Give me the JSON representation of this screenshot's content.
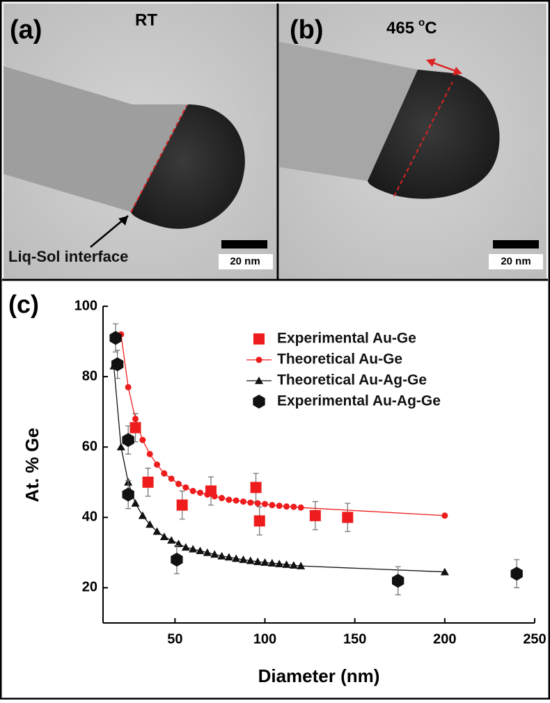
{
  "panels": [
    {
      "label": "(a)",
      "title": "RT",
      "annotation": "Liq-Sol interface",
      "scale_bar": "20 nm"
    },
    {
      "label": "(b)",
      "title": {
        "number": "465",
        "sup": "o",
        "unit": "C"
      },
      "scale_bar": "20 nm"
    }
  ],
  "chart_data": {
    "type": "scatter",
    "label": "(c)",
    "x_label": "Diameter (nm)",
    "y_label": "At. % Ge",
    "xlim": [
      10,
      250
    ],
    "ylim": [
      10,
      100
    ],
    "xticks": [
      50,
      100,
      150,
      200,
      250
    ],
    "yticks": [
      20,
      40,
      60,
      80,
      100
    ],
    "legend": "upper right",
    "series": [
      {
        "name": "Experimental Au-Ge",
        "color": "#ee1c1c",
        "marker": "square",
        "line": false,
        "x": [
          28,
          35,
          54,
          70,
          95,
          97,
          128,
          146
        ],
        "values": [
          65.5,
          50,
          43.5,
          47.5,
          48.5,
          39,
          40.5,
          40
        ],
        "errors": [
          4,
          4,
          4,
          4,
          4,
          4,
          4,
          4
        ]
      },
      {
        "name": "Theoretical Au-Ge",
        "color": "#ee1c1c",
        "marker": "circle",
        "line": true,
        "x": [
          20,
          24,
          28,
          32,
          36,
          40,
          44,
          48,
          52,
          56,
          60,
          64,
          68,
          72,
          76,
          80,
          84,
          88,
          92,
          96,
          100,
          104,
          108,
          112,
          116,
          120,
          200
        ],
        "values": [
          92,
          77,
          68,
          62,
          58,
          55,
          52.5,
          51,
          49.5,
          48.5,
          47.5,
          47,
          46.5,
          46,
          45.5,
          45,
          44.8,
          44.5,
          44.2,
          44,
          43.8,
          43.5,
          43.3,
          43.1,
          43,
          42.8,
          40.5
        ]
      },
      {
        "name": "Theoretical Au-Ag-Ge",
        "color": "#111111",
        "marker": "triangle",
        "line": true,
        "x": [
          16,
          20,
          24,
          28,
          32,
          36,
          40,
          44,
          48,
          52,
          56,
          60,
          64,
          68,
          72,
          76,
          80,
          84,
          88,
          92,
          96,
          100,
          104,
          108,
          112,
          116,
          120,
          200
        ],
        "values": [
          83,
          60,
          50,
          44,
          40.5,
          38,
          36,
          34.5,
          33.5,
          32.5,
          31.5,
          31,
          30.5,
          30,
          29.5,
          29,
          28.7,
          28.3,
          28,
          27.7,
          27.4,
          27.2,
          27,
          26.8,
          26.6,
          26.4,
          26.2,
          24.5
        ]
      },
      {
        "name": "Experimental Au-Ag-Ge",
        "color": "#111111",
        "marker": "hexagon",
        "line": false,
        "x": [
          17,
          18,
          24,
          24,
          51,
          174,
          240
        ],
        "values": [
          91,
          83.5,
          62,
          46.5,
          28,
          22,
          24
        ],
        "errors": [
          4,
          4,
          4,
          4,
          4,
          4,
          4
        ]
      }
    ]
  }
}
